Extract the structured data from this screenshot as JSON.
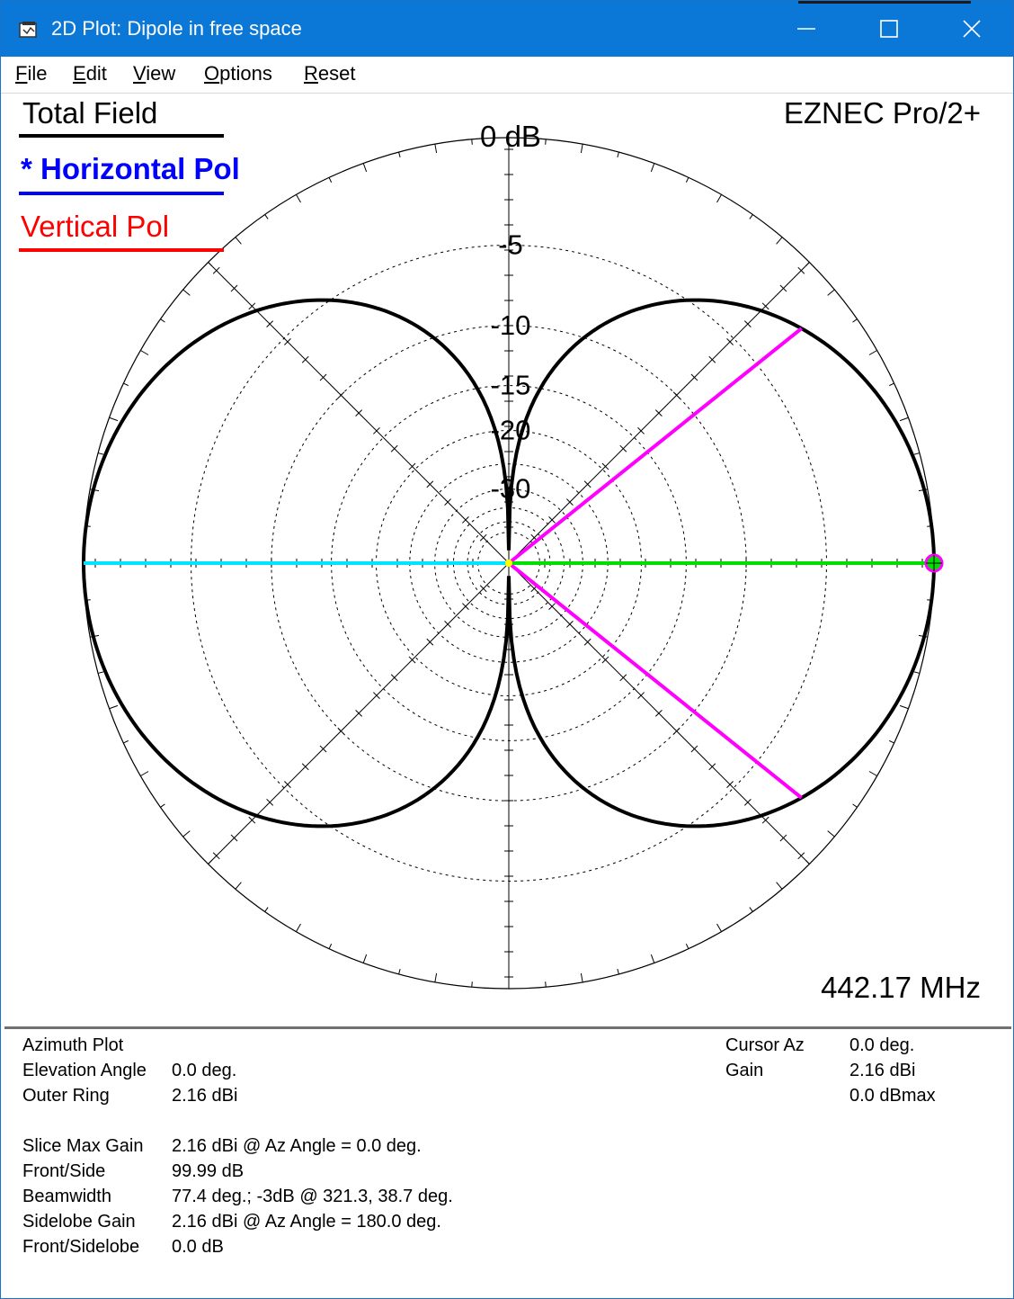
{
  "window": {
    "title": "2D Plot: Dipole in free space",
    "controls": {
      "minimize": "minimize-icon",
      "maximize": "maximize-icon",
      "close": "close-icon"
    },
    "titlebar_color": "#0b78d7"
  },
  "menu": {
    "items": [
      {
        "label": "File",
        "mnemonic": "F",
        "rest": "ile"
      },
      {
        "label": "Edit",
        "mnemonic": "E",
        "rest": "dit"
      },
      {
        "label": "View",
        "mnemonic": "V",
        "rest": "iew"
      },
      {
        "label": "Options",
        "mnemonic": "O",
        "rest": "ptions"
      },
      {
        "label": "Reset",
        "mnemonic": "R",
        "rest": "eset"
      }
    ]
  },
  "legend": {
    "total": {
      "label": "Total Field",
      "color": "#000000"
    },
    "horizontal": {
      "label": "* Horizontal Pol",
      "color": "#0000ff"
    },
    "vertical": {
      "label": "Vertical Pol",
      "color": "#ff0000"
    }
  },
  "brand": "EZNEC Pro/2+",
  "frequency": "442.17 MHz",
  "chart_data": {
    "type": "polar",
    "ring_labels": [
      "0 dB",
      "-5",
      "-10",
      "-15",
      "-20",
      "-30"
    ],
    "rings_db": [
      0,
      -5,
      -10,
      -15,
      -20,
      -30
    ],
    "pattern": {
      "name": "Total Field",
      "color": "#000000",
      "shape": "dipole figure-eight",
      "max_gain_dbi": 2.16,
      "max_azimuth_deg": 0.0,
      "nulls_azimuth_deg": [
        90,
        270
      ]
    },
    "beamwidth_lines_deg": [
      38.7,
      321.3
    ],
    "beamwidth_color": "#ff00ff",
    "cursor": {
      "azimuth_deg": 0.0,
      "color": "#00e000"
    },
    "back_line": {
      "azimuth_deg": 180.0,
      "color": "#00e5ff"
    },
    "spoke_angles_deg": [
      0,
      45,
      90,
      135,
      180,
      225,
      270,
      315
    ]
  },
  "info_left": {
    "rows": [
      {
        "label": "Azimuth Plot",
        "value": ""
      },
      {
        "label": "Elevation Angle",
        "value": "0.0 deg."
      },
      {
        "label": "Outer Ring",
        "value": "2.16 dBi"
      },
      {
        "label": "Slice Max Gain",
        "value": "2.16 dBi @ Az Angle = 0.0 deg."
      },
      {
        "label": "Front/Side",
        "value": "99.99 dB"
      },
      {
        "label": "Beamwidth",
        "value": "77.4 deg.; -3dB @ 321.3, 38.7 deg."
      },
      {
        "label": "Sidelobe Gain",
        "value": "2.16 dBi @ Az Angle = 180.0 deg."
      },
      {
        "label": "Front/Sidelobe",
        "value": "0.0 dB"
      }
    ]
  },
  "info_right": {
    "rows": [
      {
        "label": "Cursor Az",
        "value": "0.0 deg."
      },
      {
        "label": "Gain",
        "value": "2.16 dBi"
      },
      {
        "label": "",
        "value": "0.0 dBmax"
      }
    ]
  }
}
